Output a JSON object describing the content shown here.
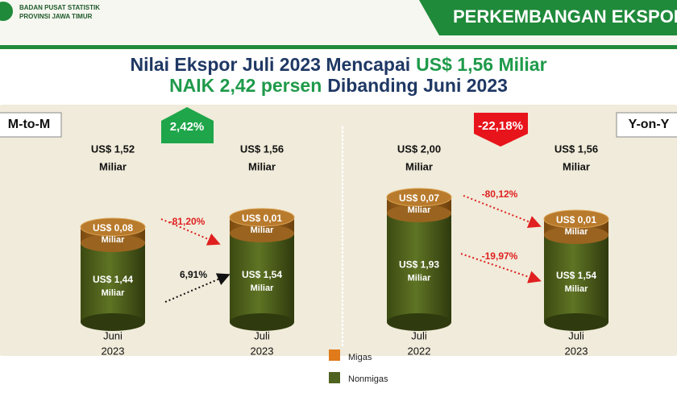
{
  "header": {
    "org": [
      "BADAN PUSAT STATISTIK",
      "PROVINSI JAWA TIMUR"
    ],
    "banner": "PERKEMBANGAN EKSPOR"
  },
  "title": {
    "line1": [
      "Nilai Ekspor Juli 2023 Mencapai",
      "US$ 1,56 Miliar"
    ],
    "line2": [
      "NAIK 2,42 persen",
      "Dibanding Juni 2023"
    ]
  },
  "panels": [
    {
      "label": "M-to-M",
      "badge": "2,42%",
      "arrows": [
        "-81,20%",
        "6,91%"
      ],
      "cylinders": [
        {
          "total": [
            "US$ 1,52",
            "Miliar"
          ],
          "migas": [
            "US$ 0,08",
            "Miliar"
          ],
          "nonmigas": [
            "US$ 1,44",
            "Miliar"
          ],
          "period": [
            "Juni",
            "2023"
          ]
        },
        {
          "total": [
            "US$ 1,56",
            "Miliar"
          ],
          "migas": [
            "US$ 0,01",
            "Miliar"
          ],
          "nonmigas": [
            "US$ 1,54",
            "Miliar"
          ],
          "period": [
            "Juli",
            "2023"
          ]
        }
      ]
    },
    {
      "label": "Y-on-Y",
      "badge": "-22,18%",
      "arrows": [
        "-80,12%",
        "-19,97%"
      ],
      "cylinders": [
        {
          "total": [
            "US$ 2,00",
            "Miliar"
          ],
          "migas": [
            "US$ 0,07",
            "Miliar"
          ],
          "nonmigas": [
            "US$ 1,93",
            "Miliar"
          ],
          "period": [
            "Juli",
            "2022"
          ]
        },
        {
          "total": [
            "US$ 1,56",
            "Miliar"
          ],
          "migas": [
            "US$ 0,01",
            "Miliar"
          ],
          "nonmigas": [
            "US$ 1,54",
            "Miliar"
          ],
          "period": [
            "Juli",
            "2023"
          ]
        }
      ]
    }
  ],
  "legend": [
    "Migas",
    "Nonmigas"
  ]
}
